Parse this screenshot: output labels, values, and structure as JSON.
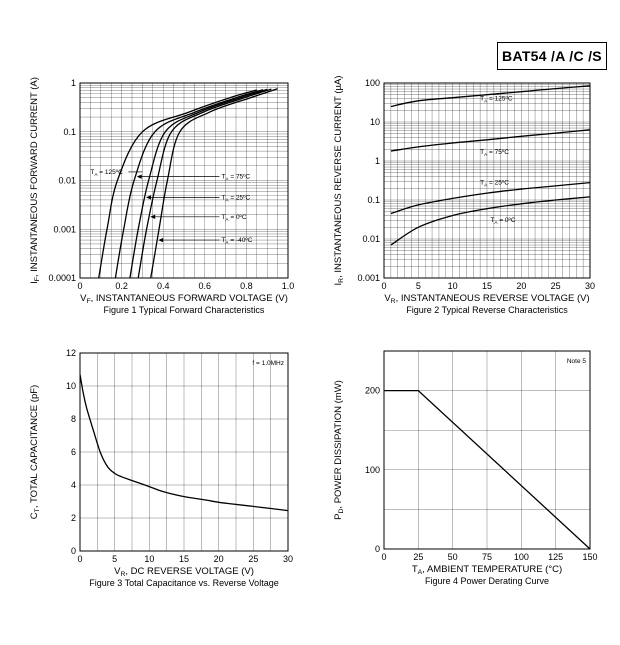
{
  "header": {
    "part_number": "BAT54 /A /C /S"
  },
  "chart_data": [
    {
      "type": "line",
      "id": "fig1",
      "caption": "Figure 1  Typical Forward Characteristics",
      "xlabel_pre": "V",
      "xlabel_sub": "F",
      "xlabel_post": ", INSTANTANEOUS FORWARD VOLTAGE (V)",
      "ylabel_pre": "I",
      "ylabel_sub": "F",
      "ylabel_post": ", INSTANTANEOUS FORWARD CURRENT (A)",
      "xlim": [
        0,
        1.0
      ],
      "ylim": [
        0.0001,
        1
      ],
      "yscale": "log",
      "x_ticks": [
        "0",
        "0.2",
        "0.4",
        "0.6",
        "0.8",
        "1.0"
      ],
      "y_ticks": [
        "0.0001",
        "0.001",
        "0.01",
        "0.1",
        "1"
      ],
      "series": [
        {
          "name": "TA = 125ºC",
          "points": [
            [
              0.09,
              0.0001
            ],
            [
              0.13,
              0.001
            ],
            [
              0.18,
              0.01
            ],
            [
              0.3,
              0.1
            ],
            [
              0.52,
              0.25
            ],
            [
              0.72,
              0.5
            ],
            [
              0.85,
              0.72
            ]
          ]
        },
        {
          "name": "TA = 75ºC",
          "points": [
            [
              0.17,
              0.0001
            ],
            [
              0.21,
              0.001
            ],
            [
              0.26,
              0.01
            ],
            [
              0.36,
              0.1
            ],
            [
              0.55,
              0.25
            ],
            [
              0.75,
              0.5
            ],
            [
              0.88,
              0.73
            ]
          ]
        },
        {
          "name": "TA = 25ºC",
          "points": [
            [
              0.24,
              0.0001
            ],
            [
              0.28,
              0.001
            ],
            [
              0.33,
              0.01
            ],
            [
              0.41,
              0.1
            ],
            [
              0.57,
              0.25
            ],
            [
              0.77,
              0.5
            ],
            [
              0.9,
              0.74
            ]
          ]
        },
        {
          "name": "TA = 0ºC",
          "points": [
            [
              0.28,
              0.0001
            ],
            [
              0.32,
              0.001
            ],
            [
              0.37,
              0.01
            ],
            [
              0.44,
              0.1
            ],
            [
              0.59,
              0.25
            ],
            [
              0.79,
              0.5
            ],
            [
              0.92,
              0.75
            ]
          ]
        },
        {
          "name": "TA = -40ºC",
          "points": [
            [
              0.34,
              0.0001
            ],
            [
              0.38,
              0.001
            ],
            [
              0.42,
              0.01
            ],
            [
              0.48,
              0.1
            ],
            [
              0.62,
              0.25
            ],
            [
              0.82,
              0.5
            ],
            [
              0.95,
              0.76
            ]
          ]
        }
      ],
      "annotations": [
        {
          "pre": "T",
          "sub": "A",
          "post": " = 125ºC",
          "x": 0.05,
          "y": 0.015
        },
        {
          "pre": "T",
          "sub": "A",
          "post": " = 75ºC",
          "x": 0.68,
          "y": 0.012
        },
        {
          "pre": "T",
          "sub": "A",
          "post": " = 25ºC",
          "x": 0.68,
          "y": 0.0045
        },
        {
          "pre": "T",
          "sub": "A",
          "post": " = 0ºC",
          "x": 0.68,
          "y": 0.0018
        },
        {
          "pre": "T",
          "sub": "A",
          "post": " = -40ºC",
          "x": 0.68,
          "y": 0.0006
        }
      ]
    },
    {
      "type": "line",
      "id": "fig2",
      "caption": "Figure 2  Typical Reverse Characteristics",
      "xlabel_pre": "V",
      "xlabel_sub": "R",
      "xlabel_post": ", INSTANTANEOUS REVERSE VOLTAGE (V)",
      "ylabel_pre": "I",
      "ylabel_sub": "R",
      "ylabel_post": ", INSTANTANEOUS REVERSE CURRENT (µA)",
      "xlim": [
        0,
        30
      ],
      "ylim": [
        0.001,
        100
      ],
      "yscale": "log",
      "x_ticks": [
        "0",
        "5",
        "10",
        "15",
        "20",
        "25",
        "30"
      ],
      "y_ticks": [
        "0.001",
        "0.01",
        "0.1",
        "1",
        "10",
        "100"
      ],
      "series": [
        {
          "name": "TA = 125ºC",
          "points": [
            [
              1,
              25
            ],
            [
              5,
              35
            ],
            [
              10,
              42
            ],
            [
              15,
              50
            ],
            [
              20,
              60
            ],
            [
              25,
              72
            ],
            [
              30,
              85
            ]
          ]
        },
        {
          "name": "TA = 75ºC",
          "points": [
            [
              1,
              1.8
            ],
            [
              5,
              2.3
            ],
            [
              10,
              2.9
            ],
            [
              15,
              3.5
            ],
            [
              20,
              4.3
            ],
            [
              25,
              5.2
            ],
            [
              30,
              6.3
            ]
          ]
        },
        {
          "name": "TA = 25ºC",
          "points": [
            [
              1,
              0.045
            ],
            [
              5,
              0.075
            ],
            [
              10,
              0.11
            ],
            [
              15,
              0.15
            ],
            [
              20,
              0.19
            ],
            [
              25,
              0.23
            ],
            [
              30,
              0.28
            ]
          ]
        },
        {
          "name": "TA = 0ºC",
          "points": [
            [
              1,
              0.007
            ],
            [
              5,
              0.02
            ],
            [
              10,
              0.04
            ],
            [
              15,
              0.06
            ],
            [
              20,
              0.08
            ],
            [
              25,
              0.1
            ],
            [
              30,
              0.12
            ]
          ]
        }
      ],
      "annotations": [
        {
          "pre": "T",
          "sub": "A",
          "post": " = 125ºC",
          "x": 14,
          "y": 40
        },
        {
          "pre": "T",
          "sub": "A",
          "post": " = 75ºC",
          "x": 14,
          "y": 1.7
        },
        {
          "pre": "T",
          "sub": "A",
          "post": " = 25ºC",
          "x": 14,
          "y": 0.28
        },
        {
          "pre": "T",
          "sub": "A",
          "post": " = 0ºC",
          "x": 15.5,
          "y": 0.031
        }
      ]
    },
    {
      "type": "line",
      "id": "fig3",
      "caption": "Figure 3  Total Capacitance vs. Reverse Voltage",
      "xlabel_pre": "V",
      "xlabel_sub": "R",
      "xlabel_post": ", DC REVERSE VOLTAGE (V)",
      "ylabel_pre": "C",
      "ylabel_sub": "T",
      "ylabel_post": ", TOTAL CAPACITANCE (pF)",
      "xlim": [
        0,
        30
      ],
      "ylim": [
        0,
        12
      ],
      "yscale": "linear",
      "x_ticks": [
        "0",
        "5",
        "10",
        "15",
        "20",
        "25",
        "30"
      ],
      "y_ticks": [
        "0",
        "2",
        "4",
        "6",
        "8",
        "10",
        "12"
      ],
      "note": "f = 1.0MHz",
      "series": [
        {
          "name": "",
          "points": [
            [
              0,
              10.7
            ],
            [
              0.5,
              9.5
            ],
            [
              1,
              8.6
            ],
            [
              2,
              7.2
            ],
            [
              3,
              5.9
            ],
            [
              4,
              5.1
            ],
            [
              5,
              4.7
            ],
            [
              6,
              4.5
            ],
            [
              8,
              4.2
            ],
            [
              10,
              3.9
            ],
            [
              12,
              3.6
            ],
            [
              15,
              3.3
            ],
            [
              18,
              3.1
            ],
            [
              20,
              2.95
            ],
            [
              22,
              2.85
            ],
            [
              25,
              2.7
            ],
            [
              28,
              2.55
            ],
            [
              30,
              2.45
            ]
          ]
        }
      ]
    },
    {
      "type": "line",
      "id": "fig4",
      "caption": "Figure 4  Power Derating Curve",
      "xlabel_pre": "T",
      "xlabel_sub": "A",
      "xlabel_post": ", AMBIENT TEMPERATURE (°C)",
      "ylabel_pre": "P",
      "ylabel_sub": "D",
      "ylabel_post": ", POWER DISSIPATION (mW)",
      "xlim": [
        0,
        150
      ],
      "ylim": [
        0,
        250
      ],
      "yscale": "linear",
      "x_ticks": [
        "0",
        "25",
        "50",
        "75",
        "100",
        "125",
        "150"
      ],
      "y_ticks": [
        "0",
        "100",
        "200"
      ],
      "note": "Note 5",
      "series": [
        {
          "name": "",
          "points": [
            [
              0,
              200
            ],
            [
              25,
              200
            ],
            [
              150,
              0
            ]
          ]
        }
      ]
    }
  ]
}
